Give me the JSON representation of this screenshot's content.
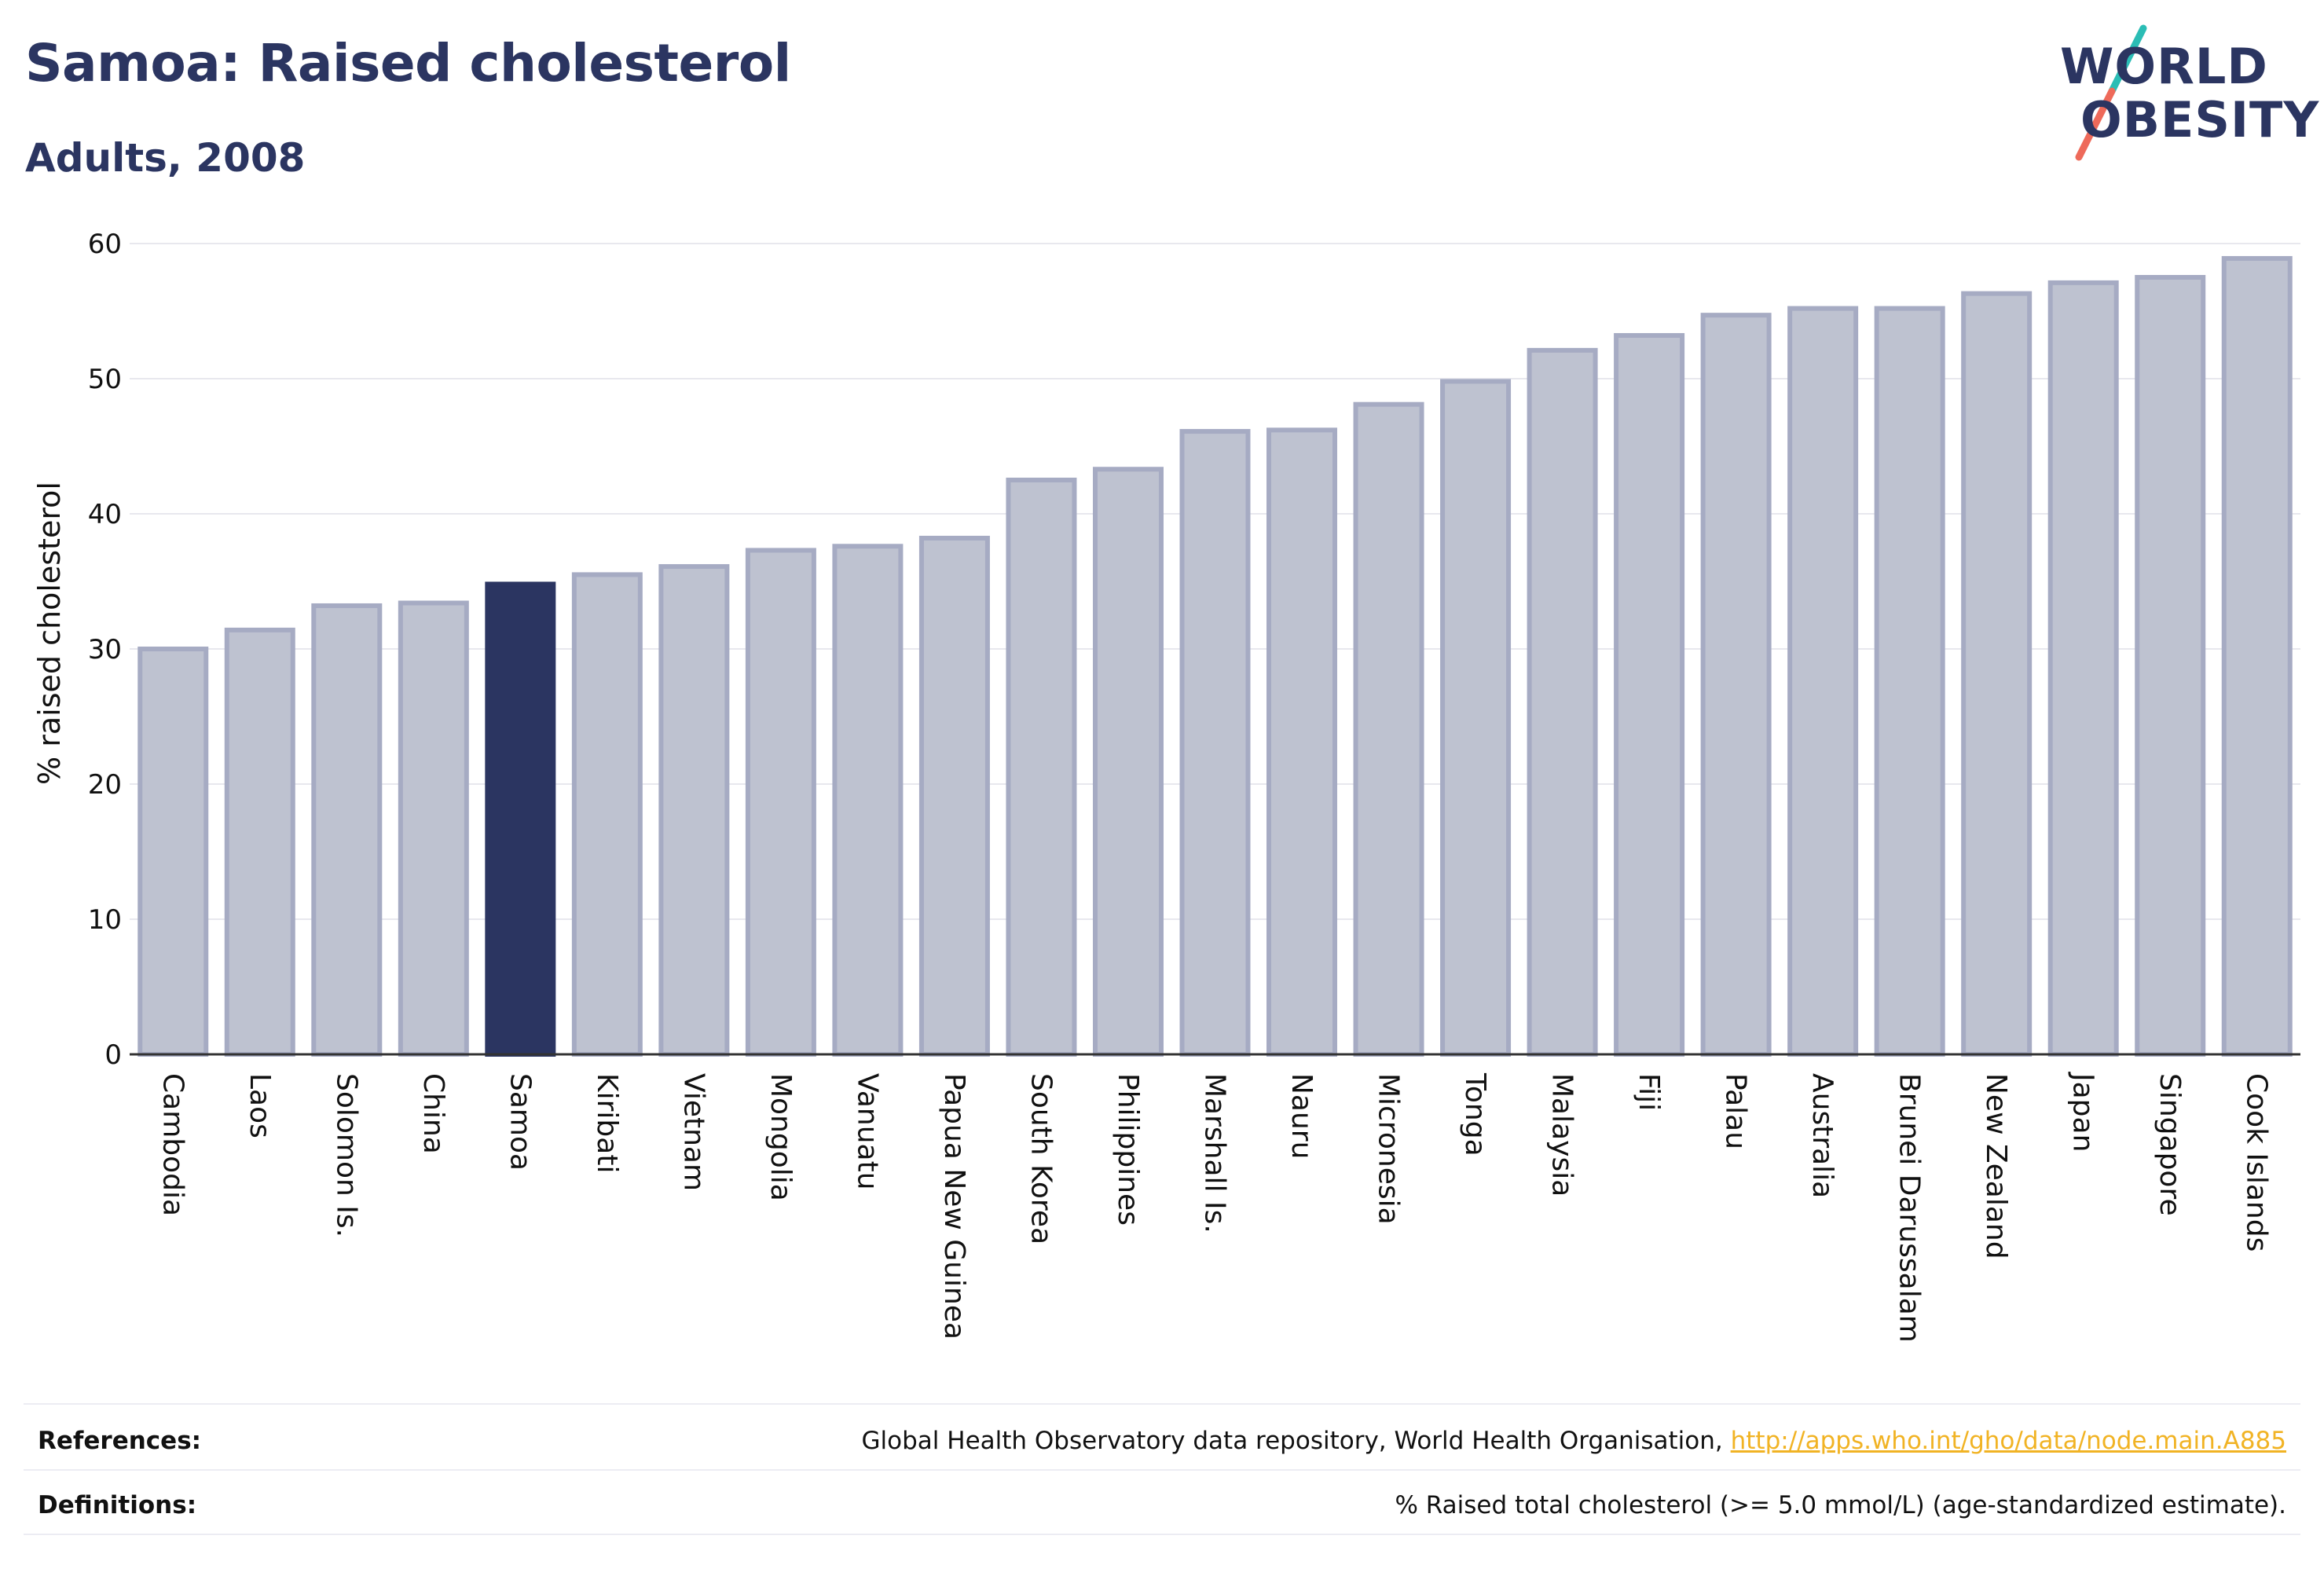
{
  "header": {
    "title": "Samoa: Raised cholesterol",
    "subtitle": "Adults, 2008"
  },
  "logo": {
    "line1": "WORLD",
    "line2": "OBESITY",
    "text_color": "#2b3561",
    "slash_colors": [
      "#2bbdb5",
      "#ee6a5a"
    ]
  },
  "colors": {
    "highlight_bar": "#2b3561",
    "other_bar_fill": "#bec2d0",
    "other_bar_stroke": "#a6abc3",
    "grid": "#e8e8ee",
    "axis": "#333333"
  },
  "chart_data": {
    "type": "bar",
    "ylabel": "% raised cholesterol",
    "xlabel": "",
    "ylim": [
      0,
      60
    ],
    "yticks": [
      0,
      10,
      20,
      30,
      40,
      50,
      60
    ],
    "grid": true,
    "highlight": "Samoa",
    "categories": [
      "Cambodia",
      "Laos",
      "Solomon Is.",
      "China",
      "Samoa",
      "Kiribati",
      "Vietnam",
      "Mongolia",
      "Vanuatu",
      "Papua New Guinea",
      "South Korea",
      "Philippines",
      "Marshall Is.",
      "Nauru",
      "Micronesia",
      "Tonga",
      "Malaysia",
      "Fiji",
      "Palau",
      "Australia",
      "Brunei Darussalam",
      "New Zealand",
      "Japan",
      "Singapore",
      "Cook Islands"
    ],
    "values": [
      30.0,
      31.4,
      33.2,
      33.4,
      34.8,
      35.5,
      36.1,
      37.3,
      37.6,
      38.2,
      42.5,
      43.3,
      46.1,
      46.2,
      48.1,
      49.8,
      52.1,
      53.2,
      54.7,
      55.2,
      55.2,
      56.3,
      57.1,
      57.5,
      58.9
    ]
  },
  "footer": {
    "references_label": "References:",
    "references_text": "Global Health Observatory data repository, World Health Organisation, ",
    "references_link": "http://apps.who.int/gho/data/node.main.A885",
    "definitions_label": "Definitions:",
    "definitions_text": "% Raised total cholesterol (>= 5.0 mmol/L) (age-standardized estimate)."
  }
}
